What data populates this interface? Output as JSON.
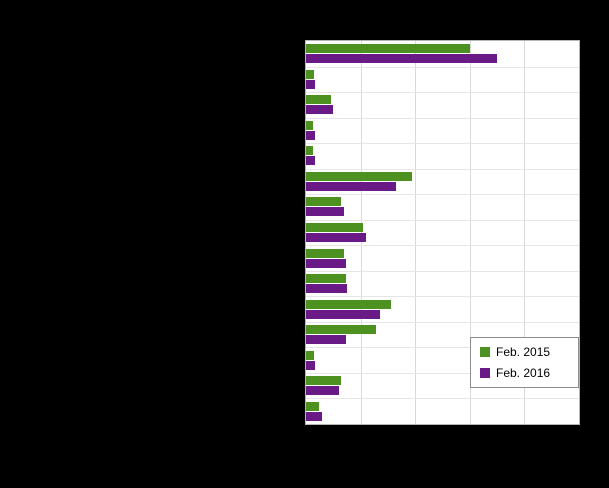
{
  "chart_data": {
    "type": "bar",
    "orientation": "horizontal",
    "categories": [
      "",
      "",
      "",
      "",
      "",
      "",
      "",
      "",
      "",
      "",
      "",
      "",
      "",
      "",
      ""
    ],
    "series": [
      {
        "name": "Feb. 2015",
        "color": "#4d9221",
        "values": [
          3.0,
          0.15,
          0.45,
          0.13,
          0.13,
          1.95,
          0.64,
          1.05,
          0.69,
          0.73,
          1.56,
          1.29,
          0.15,
          0.64,
          0.24
        ]
      },
      {
        "name": "Feb. 2016",
        "color": "#6a1a86",
        "values": [
          3.5,
          0.17,
          0.5,
          0.16,
          0.16,
          1.65,
          0.69,
          1.09,
          0.73,
          0.76,
          1.36,
          0.73,
          0.17,
          0.6,
          0.29
        ]
      }
    ],
    "xlim": [
      0,
      5
    ],
    "grid": true,
    "legend_position": "bottom-right",
    "plot_background": "#ffffff",
    "page_background": "#000000"
  }
}
